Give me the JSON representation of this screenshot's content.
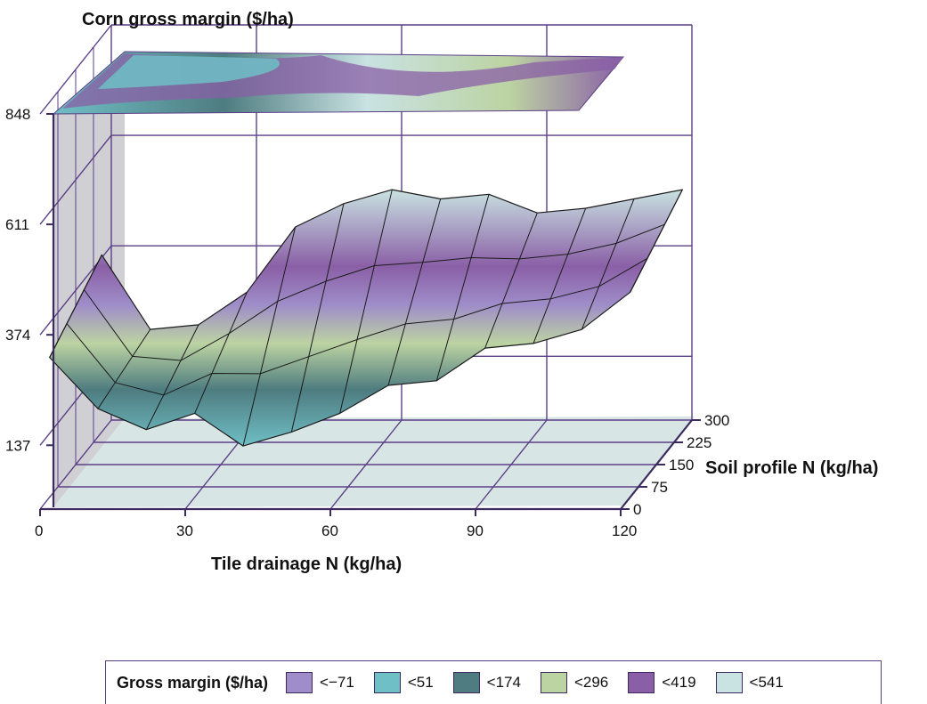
{
  "chart_data": {
    "type": "surface3d",
    "title": "Corn gross margin ($/ha)",
    "xlabel": "Tile drainage N (kg/ha)",
    "ylabel": "Soil profile N (kg/ha)",
    "zlabel": "",
    "x_ticks": [
      "0",
      "30",
      "60",
      "90",
      "120"
    ],
    "y_ticks": [
      "0",
      "75",
      "150",
      "225",
      "300"
    ],
    "z_ticks": [
      "137",
      "374",
      "611",
      "848"
    ],
    "x": [
      0,
      10,
      20,
      30,
      40,
      50,
      60,
      70,
      80,
      90,
      100,
      110,
      120
    ],
    "surface_front_edge": [
      500,
      390,
      345,
      380,
      310,
      340,
      380,
      440,
      450,
      520,
      530,
      560,
      640
    ],
    "surface_back_edge": [
      560,
      400,
      410,
      480,
      620,
      670,
      700,
      680,
      690,
      650,
      660,
      680,
      700
    ],
    "surface_min": 5,
    "legend": {
      "title": "Gross margin ($/ha)",
      "entries": [
        {
          "label": "<−71",
          "color": "#9f8dc9"
        },
        {
          "label": "<51",
          "color": "#6fbfc6"
        },
        {
          "label": "<174",
          "color": "#4e7c80"
        },
        {
          "label": "<296",
          "color": "#bcd3a2"
        },
        {
          "label": "<419",
          "color": "#8a5fa6"
        },
        {
          "label": "<541",
          "color": "#c9e2e2"
        }
      ]
    }
  }
}
